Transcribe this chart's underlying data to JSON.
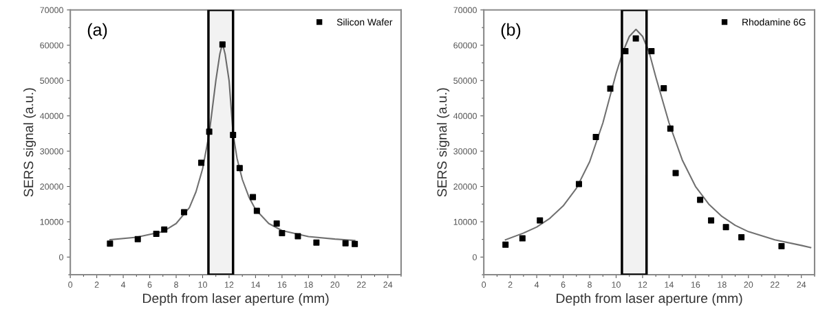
{
  "chart_data": [
    {
      "type": "scatter",
      "xlabel": "Depth from laser aperture (mm)",
      "ylabel": "SERS signal (a.u.)",
      "annotations": [
        "(a)"
      ],
      "xlim": [
        0,
        25
      ],
      "ylim": [
        -5000,
        70000
      ],
      "xticks": [
        0,
        2,
        4,
        6,
        8,
        10,
        12,
        14,
        16,
        18,
        20,
        22,
        24
      ],
      "yticks": [
        0,
        10000,
        20000,
        30000,
        40000,
        50000,
        60000,
        70000
      ],
      "legend": "top right",
      "grid": false,
      "bands": [
        {
          "axis": "x",
          "from": 10.44,
          "to": 12.3,
          "color": "#000000"
        }
      ],
      "series": [
        {
          "name": "Silicon Wafer",
          "marker": "square",
          "color": "#000000",
          "x": [
            3,
            5.1,
            6.5,
            7.1,
            8.6,
            9.9,
            10.5,
            11.5,
            12.3,
            12.8,
            13.8,
            14.1,
            15.6,
            16,
            17.2,
            18.6,
            20.8,
            21.5
          ],
          "values": [
            3800,
            5100,
            6600,
            7800,
            12700,
            26700,
            35500,
            60200,
            34600,
            25200,
            17000,
            13100,
            9500,
            6800,
            5900,
            4100,
            3900,
            3700
          ]
        },
        {
          "type": "line",
          "color": "#707070",
          "x": [
            3,
            5,
            7,
            8,
            9,
            9.5,
            10,
            10.5,
            11,
            11.3,
            11.5,
            11.7,
            12,
            12.3,
            12.6,
            13,
            13.5,
            14,
            15,
            16,
            18,
            20,
            21.5
          ],
          "values": [
            4900,
            5600,
            7200,
            9500,
            14000,
            18500,
            25000,
            35000,
            50000,
            57500,
            60500,
            57500,
            50000,
            35000,
            28000,
            22000,
            17000,
            13500,
            9500,
            7500,
            5800,
            5100,
            4700
          ]
        }
      ]
    },
    {
      "type": "scatter",
      "xlabel": "Depth from laser aperture (mm)",
      "ylabel": "SERS signal (a.u.)",
      "annotations": [
        "(b)"
      ],
      "xlim": [
        0,
        25
      ],
      "ylim": [
        -5000,
        70000
      ],
      "xticks": [
        0,
        2,
        4,
        6,
        8,
        10,
        12,
        14,
        16,
        18,
        20,
        22,
        24
      ],
      "yticks": [
        0,
        10000,
        20000,
        30000,
        40000,
        50000,
        60000,
        70000
      ],
      "legend": "top right",
      "grid": false,
      "bands": [
        {
          "axis": "x",
          "from": 10.44,
          "to": 12.3,
          "color": "#000000"
        }
      ],
      "series": [
        {
          "name": "Rhodamine 6G",
          "marker": "square",
          "color": "#000000",
          "x": [
            1.64,
            2.92,
            4.24,
            7.19,
            8.47,
            9.56,
            10.7,
            11.49,
            12.67,
            13.6,
            14.1,
            14.5,
            16.35,
            17.18,
            18.3,
            19.47,
            22.5
          ],
          "values": [
            3500,
            5300,
            10400,
            20700,
            34000,
            47700,
            58300,
            61900,
            58300,
            47800,
            36400,
            23800,
            16200,
            10400,
            8500,
            5600,
            3100
          ]
        },
        {
          "type": "line",
          "color": "#707070",
          "x": [
            1.64,
            3,
            4,
            5,
            6,
            7,
            8,
            9,
            10,
            10.5,
            11,
            11.5,
            12,
            12.5,
            13,
            14,
            15,
            16,
            17,
            18,
            19,
            20,
            22,
            24,
            24.7
          ],
          "values": [
            4900,
            6800,
            8500,
            11000,
            14500,
            19500,
            27000,
            38000,
            52000,
            58000,
            62500,
            64500,
            62500,
            58000,
            51000,
            38000,
            27500,
            20000,
            15000,
            11500,
            9000,
            7200,
            4900,
            3300,
            2700
          ]
        }
      ]
    }
  ]
}
